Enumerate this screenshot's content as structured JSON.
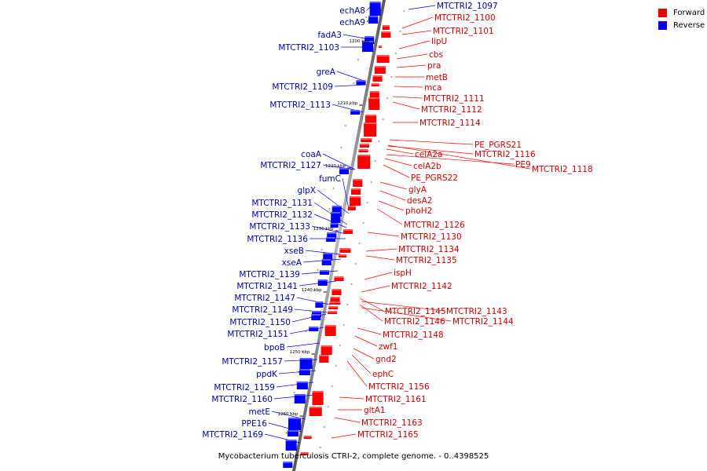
{
  "colors": {
    "forward": "#ff0000",
    "reverse": "#0000ff",
    "backbone": "#888888",
    "tick": "#000000"
  },
  "legend": [
    {
      "label": "Forward",
      "color": "#ee0000"
    },
    {
      "label": "Reverse",
      "color": "#0000ee"
    }
  ],
  "caption": "Mycobacterium tuberculosis CTRI-2, complete genome. - 0..4398525",
  "ticks": [
    "1200 kbp",
    "1210 kbp",
    "1220 kbp",
    "1230 kbp",
    "1240 kbp",
    "1250 kbp",
    "1260 kbp"
  ],
  "reverse_labels": [
    "echA8",
    "echA9",
    "fadA3",
    "MTCTRI2_1103",
    "greA",
    "MTCTRI2_1109",
    "MTCTRI2_1113",
    "coaA",
    "MTCTRI2_1127",
    "fumC",
    "glpX",
    "MTCTRI2_1131",
    "MTCTRI2_1132",
    "MTCTRI2_1133",
    "MTCTRI2_1136",
    "xseB",
    "xseA",
    "MTCTRI2_1139",
    "MTCTRI2_1141",
    "MTCTRI2_1147",
    "MTCTRI2_1149",
    "MTCTRI2_1150",
    "MTCTRI2_1151",
    "bpoB",
    "MTCTRI2_1157",
    "ppdK",
    "MTCTRI2_1159",
    "MTCTRI2_1160",
    "metE",
    "PPE16",
    "MTCTRI2_1169"
  ],
  "forward_labels": [
    "MTCTRI2_1097",
    "MTCTRI2_1100",
    "MTCTRI2_1101",
    "lipU",
    "cbs",
    "pra",
    "metB",
    "mca",
    "MTCTRI2_1111",
    "MTCTRI2_1112",
    "MTCTRI2_1114",
    "PE_PGRS21",
    "MTCTRI2_1116",
    "celA2a",
    "PE9",
    "MTCTRI2_1118",
    "celA2b",
    "PE_PGRS22",
    "glyA",
    "desA2",
    "phoH2",
    "MTCTRI2_1126",
    "MTCTRI2_1130",
    "MTCTRI2_1134",
    "MTCTRI2_1135",
    "ispH",
    "MTCTRI2_1142",
    "MTCTRI2_1145",
    "MTCTRI2_1143",
    "MTCTRI2_1146",
    "MTCTRI2_1144",
    "MTCTRI2_1148",
    "zwf1",
    "gnd2",
    "ephC",
    "MTCTRI2_1156",
    "MTCTRI2_1161",
    "gltA1",
    "MTCTRI2_1163",
    "MTCTRI2_1165"
  ]
}
